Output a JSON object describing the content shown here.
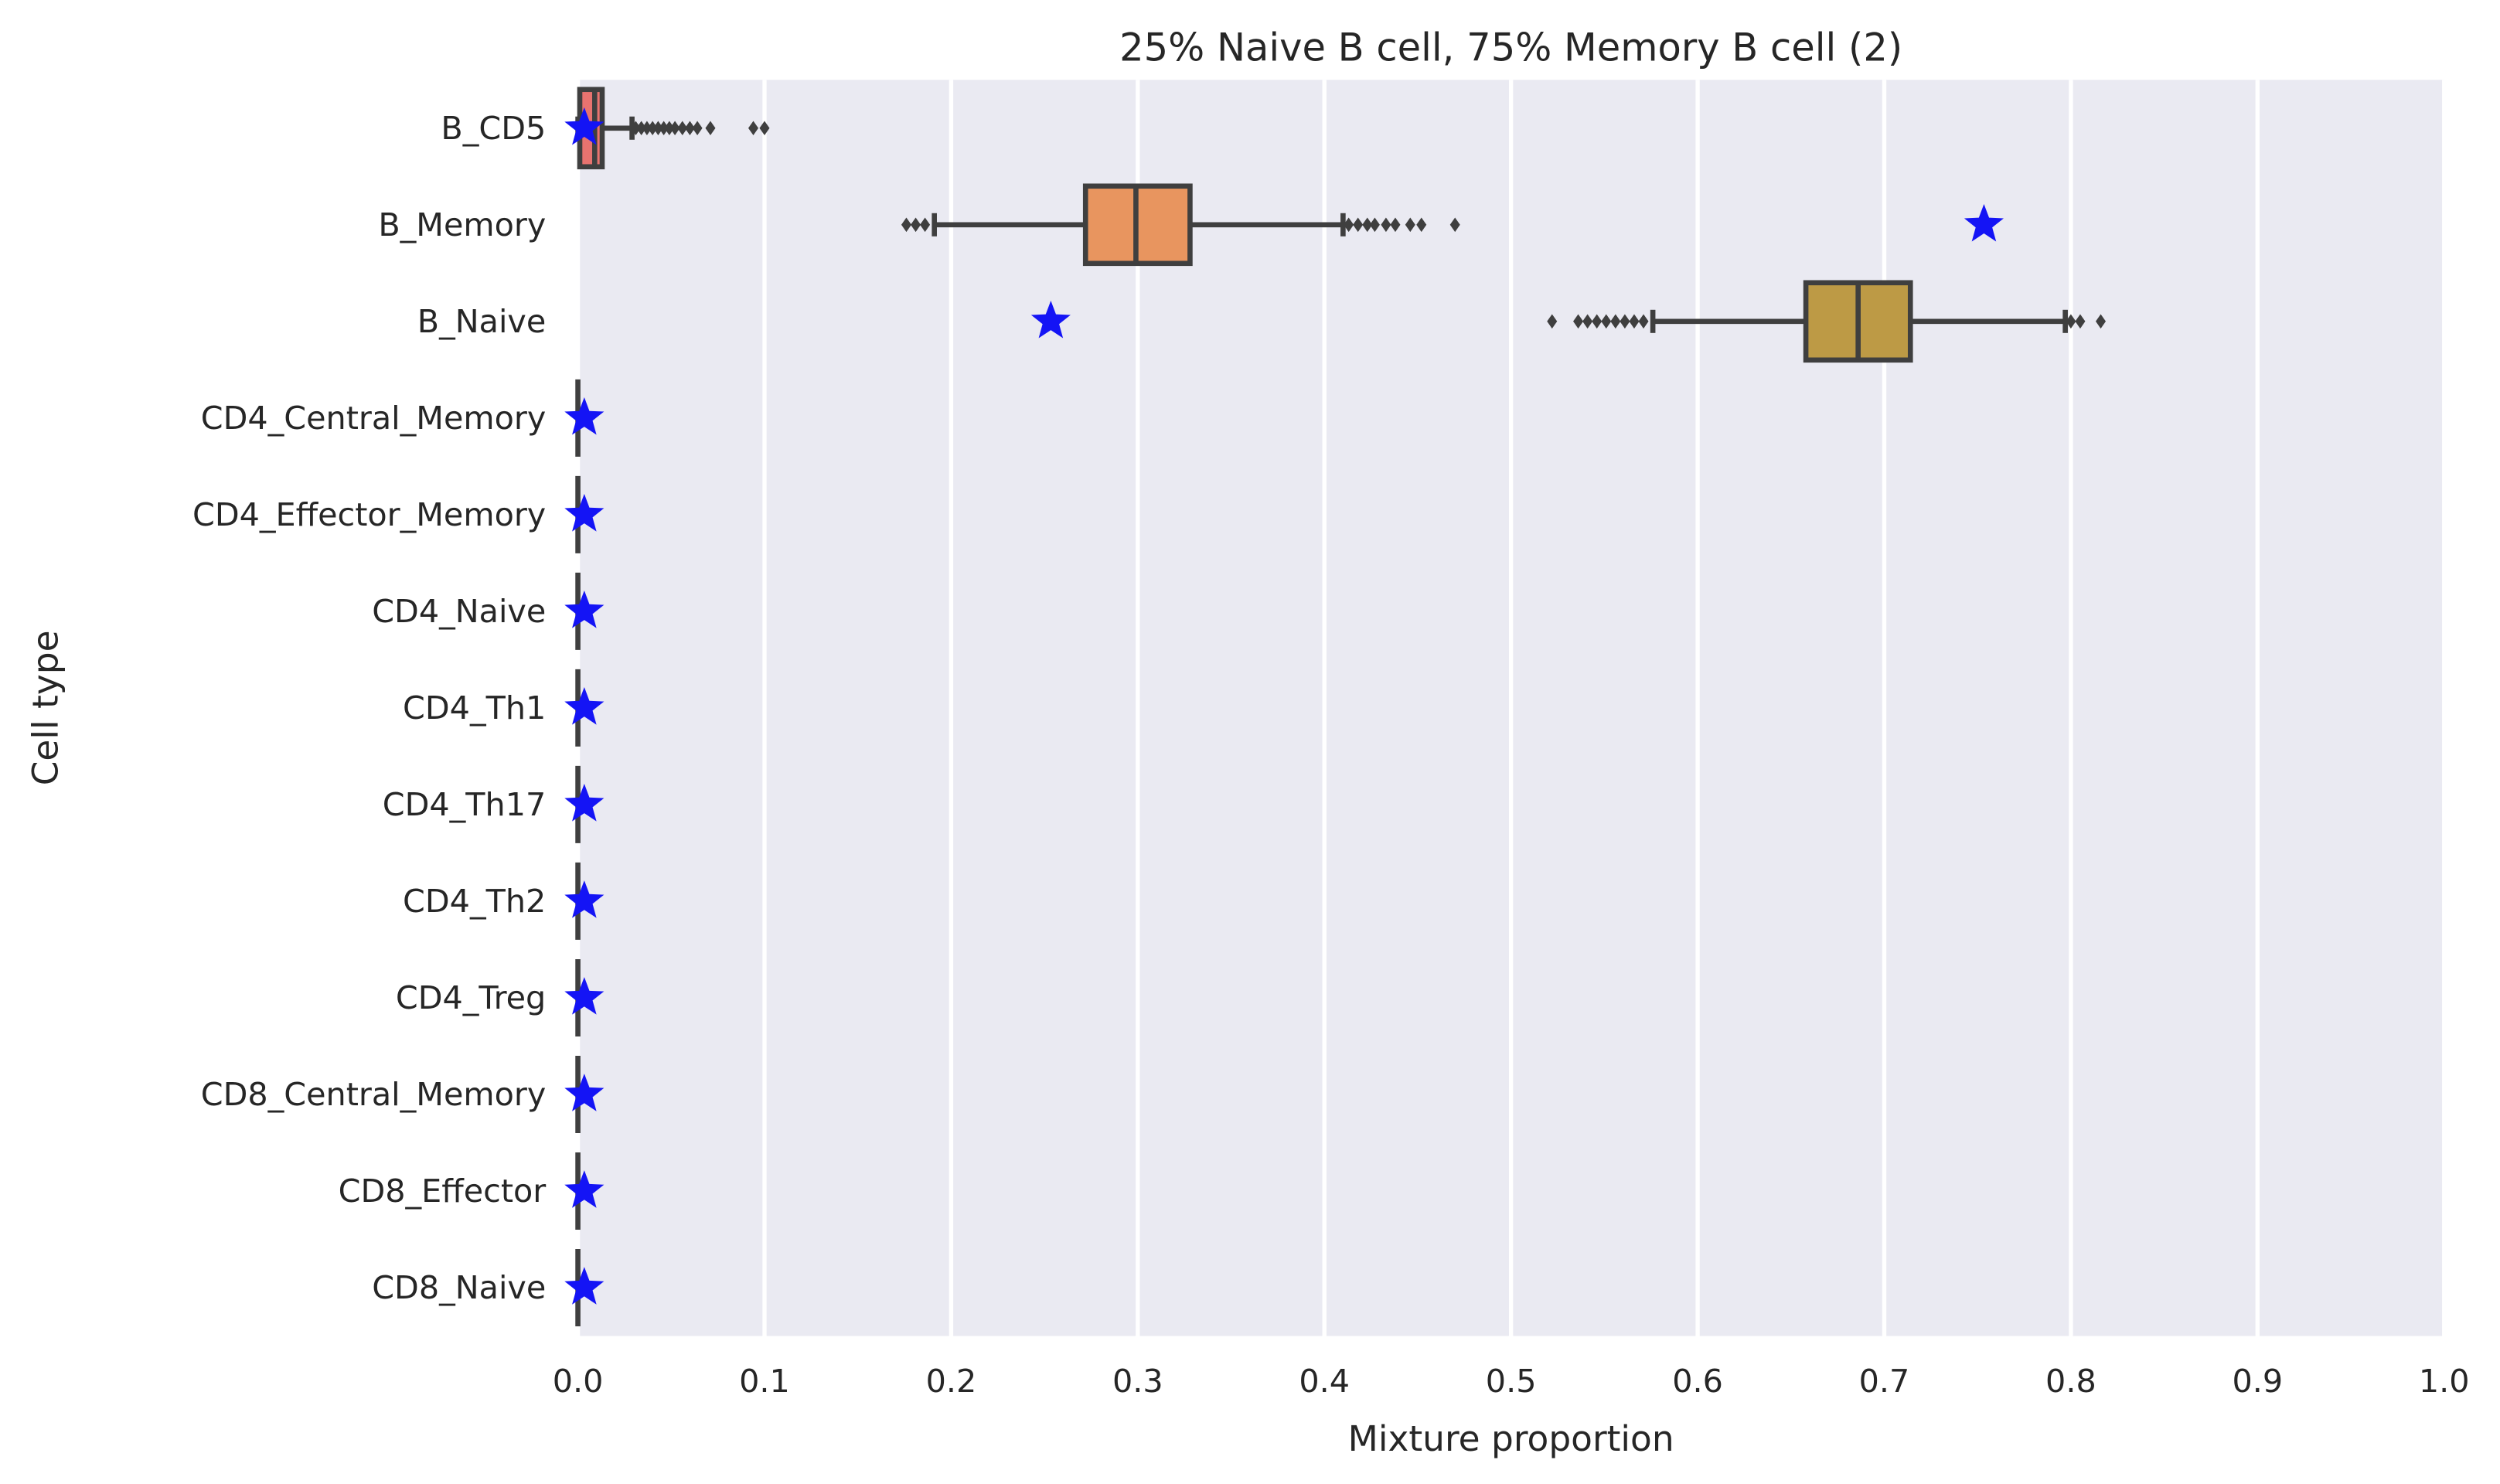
{
  "chart_data": {
    "type": "box",
    "orientation": "horizontal",
    "title": "25% Naive B cell, 75% Memory B cell (2)",
    "xlabel": "Mixture proportion",
    "ylabel": "Cell type",
    "xlim": [
      0.0,
      1.0
    ],
    "xticks": [
      0.0,
      0.1,
      0.2,
      0.3,
      0.4,
      0.5,
      0.6,
      0.7,
      0.8,
      0.9,
      1.0
    ],
    "xtick_labels": [
      "0.0",
      "0.1",
      "0.2",
      "0.3",
      "0.4",
      "0.5",
      "0.6",
      "0.7",
      "0.8",
      "0.9",
      "1.0"
    ],
    "grid": true,
    "background": "#EAEAF2",
    "grid_color": "#FFFFFF",
    "marker_color": "#1414F5",
    "box_edge_color": "#3F3F3F",
    "categories": [
      "B_CD5",
      "B_Memory",
      "B_Naive",
      "CD4_Central_Memory",
      "CD4_Effector_Memory",
      "CD4_Naive",
      "CD4_Th1",
      "CD4_Th17",
      "CD4_Th2",
      "CD4_Treg",
      "CD8_Central_Memory",
      "CD8_Effector",
      "CD8_Naive"
    ],
    "boxes": [
      {
        "category": "B_CD5",
        "color": "#E8736F",
        "whisker_low": 0.0,
        "q1": 0.001,
        "median": 0.009,
        "q3": 0.013,
        "whisker_high": 0.029,
        "outliers": [
          0.031,
          0.034,
          0.037,
          0.04,
          0.043,
          0.046,
          0.049,
          0.052,
          0.056,
          0.06,
          0.064,
          0.071,
          0.094,
          0.1
        ]
      },
      {
        "category": "B_Memory",
        "color": "#E8955F",
        "whisker_low": 0.191,
        "q1": 0.272,
        "median": 0.299,
        "q3": 0.328,
        "whisker_high": 0.41,
        "outliers": [
          0.176,
          0.181,
          0.186,
          0.413,
          0.418,
          0.423,
          0.427,
          0.433,
          0.438,
          0.446,
          0.452,
          0.47
        ]
      },
      {
        "category": "B_Naive",
        "color": "#BD9A45",
        "whisker_low": 0.576,
        "q1": 0.658,
        "median": 0.686,
        "q3": 0.714,
        "whisker_high": 0.797,
        "outliers": [
          0.522,
          0.536,
          0.541,
          0.546,
          0.551,
          0.556,
          0.561,
          0.566,
          0.571,
          0.8,
          0.805,
          0.816
        ]
      },
      {
        "category": "CD4_Central_Memory",
        "color": "#3F3F3F",
        "whisker_low": 0.0,
        "q1": 0.0,
        "median": 0.0,
        "q3": 0.0,
        "whisker_high": 0.0,
        "outliers": []
      },
      {
        "category": "CD4_Effector_Memory",
        "color": "#3F3F3F",
        "whisker_low": 0.0,
        "q1": 0.0,
        "median": 0.0,
        "q3": 0.0,
        "whisker_high": 0.0,
        "outliers": []
      },
      {
        "category": "CD4_Naive",
        "color": "#3F3F3F",
        "whisker_low": 0.0,
        "q1": 0.0,
        "median": 0.0,
        "q3": 0.0,
        "whisker_high": 0.0,
        "outliers": []
      },
      {
        "category": "CD4_Th1",
        "color": "#3F3F3F",
        "whisker_low": 0.0,
        "q1": 0.0,
        "median": 0.0,
        "q3": 0.0,
        "whisker_high": 0.0,
        "outliers": []
      },
      {
        "category": "CD4_Th17",
        "color": "#3F3F3F",
        "whisker_low": 0.0,
        "q1": 0.0,
        "median": 0.0,
        "q3": 0.0,
        "whisker_high": 0.0,
        "outliers": []
      },
      {
        "category": "CD4_Th2",
        "color": "#3F3F3F",
        "whisker_low": 0.0,
        "q1": 0.0,
        "median": 0.0,
        "q3": 0.0,
        "whisker_high": 0.0,
        "outliers": []
      },
      {
        "category": "CD4_Treg",
        "color": "#3F3F3F",
        "whisker_low": 0.0,
        "q1": 0.0,
        "median": 0.0,
        "q3": 0.0,
        "whisker_high": 0.0,
        "outliers": []
      },
      {
        "category": "CD8_Central_Memory",
        "color": "#3F3F3F",
        "whisker_low": 0.0,
        "q1": 0.0,
        "median": 0.0,
        "q3": 0.0,
        "whisker_high": 0.0,
        "outliers": []
      },
      {
        "category": "CD8_Effector",
        "color": "#3F3F3F",
        "whisker_low": 0.0,
        "q1": 0.0,
        "median": 0.0,
        "q3": 0.0,
        "whisker_high": 0.0,
        "outliers": []
      },
      {
        "category": "CD8_Naive",
        "color": "#3F3F3F",
        "whisker_low": 0.0,
        "q1": 0.0,
        "median": 0.0,
        "q3": 0.0,
        "whisker_high": 0.0,
        "outliers": []
      }
    ],
    "true_values": [
      {
        "category": "B_CD5",
        "x": 0.0
      },
      {
        "category": "B_Memory",
        "x": 0.75
      },
      {
        "category": "B_Naive",
        "x": 0.25
      },
      {
        "category": "CD4_Central_Memory",
        "x": 0.0
      },
      {
        "category": "CD4_Effector_Memory",
        "x": 0.0
      },
      {
        "category": "CD4_Naive",
        "x": 0.0
      },
      {
        "category": "CD4_Th1",
        "x": 0.0
      },
      {
        "category": "CD4_Th17",
        "x": 0.0
      },
      {
        "category": "CD4_Th2",
        "x": 0.0
      },
      {
        "category": "CD4_Treg",
        "x": 0.0
      },
      {
        "category": "CD8_Central_Memory",
        "x": 0.0
      },
      {
        "category": "CD8_Effector",
        "x": 0.0
      },
      {
        "category": "CD8_Naive",
        "x": 0.0
      }
    ]
  }
}
